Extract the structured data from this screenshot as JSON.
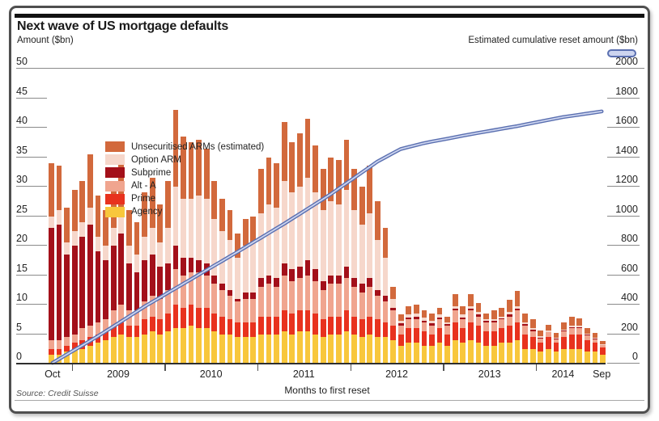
{
  "title": "Next wave of US mortgage defaults",
  "left_axis_title": "Amount ($bn)",
  "right_axis_title": "Estimated cumulative reset amount ($bn)",
  "x_axis_title": "Months to first reset",
  "source": "Source: Credit Suisse",
  "colors": {
    "agency": "#f8c73c",
    "prime": "#e8321e",
    "alt_a": "#f0a58f",
    "subprime": "#a3101a",
    "option_arm": "#f6d7cb",
    "unsec_arm": "#d2693c",
    "line_outer": "#5a6fb0",
    "line_inner": "#ccd4ef",
    "axis_text": "#222222"
  },
  "legend": [
    {
      "key": "unsec_arm",
      "label": "Unsecuritised ARMs (estimated)"
    },
    {
      "key": "option_arm",
      "label": "Option ARM"
    },
    {
      "key": "subprime",
      "label": "Subprime"
    },
    {
      "key": "alt_a",
      "label": "Alt - A"
    },
    {
      "key": "prime",
      "label": "Prime"
    },
    {
      "key": "agency",
      "label": "Agency"
    }
  ],
  "left_ticks": [
    50,
    45,
    40,
    35,
    30,
    25,
    20,
    15,
    10,
    5,
    0
  ],
  "right_ticks": [
    2000,
    1800,
    1600,
    1400,
    1200,
    1000,
    800,
    600,
    400,
    200,
    0
  ],
  "x_axis": {
    "labels": [
      {
        "text": "Oct",
        "pos": 0.5
      },
      {
        "text": "2009",
        "pos": 9
      },
      {
        "text": "2010",
        "pos": 21
      },
      {
        "text": "2011",
        "pos": 33
      },
      {
        "text": "2012",
        "pos": 45
      },
      {
        "text": "2013",
        "pos": 57
      },
      {
        "text": "2014",
        "pos": 66.5
      },
      {
        "text": "Sep",
        "pos": 71.5
      }
    ],
    "tick_positions": [
      3,
      15,
      27,
      39,
      51,
      63
    ]
  },
  "chart_data": [
    {
      "type": "bar",
      "stacked": true,
      "title": "Next wave of US mortgage defaults",
      "ylabel": "Amount ($bn)",
      "xlabel": "Months to first reset",
      "ylim": [
        0,
        50
      ],
      "grid": false,
      "x": [
        "Oct 2008",
        "Nov 2008",
        "Dec 2008",
        "Jan 2009",
        "Feb 2009",
        "Mar 2009",
        "Apr 2009",
        "May 2009",
        "Jun 2009",
        "Jul 2009",
        "Aug 2009",
        "Sep 2009",
        "Oct 2009",
        "Nov 2009",
        "Dec 2009",
        "Jan 2010",
        "Feb 2010",
        "Mar 2010",
        "Apr 2010",
        "May 2010",
        "Jun 2010",
        "Jul 2010",
        "Aug 2010",
        "Sep 2010",
        "Oct 2010",
        "Nov 2010",
        "Dec 2010",
        "Jan 2011",
        "Feb 2011",
        "Mar 2011",
        "Apr 2011",
        "May 2011",
        "Jun 2011",
        "Jul 2011",
        "Aug 2011",
        "Sep 2011",
        "Oct 2011",
        "Nov 2011",
        "Dec 2011",
        "Jan 2012",
        "Feb 2012",
        "Mar 2012",
        "Apr 2012",
        "May 2012",
        "Jun 2012",
        "Jul 2012",
        "Aug 2012",
        "Sep 2012",
        "Oct 2012",
        "Nov 2012",
        "Dec 2012",
        "Jan 2013",
        "Feb 2013",
        "Mar 2013",
        "Apr 2013",
        "May 2013",
        "Jun 2013",
        "Jul 2013",
        "Aug 2013",
        "Sep 2013",
        "Oct 2013",
        "Nov 2013",
        "Dec 2013",
        "Jan 2014",
        "Feb 2014",
        "Mar 2014",
        "Apr 2014",
        "May 2014",
        "Jun 2014",
        "Jul 2014",
        "Aug 2014",
        "Sep 2014"
      ],
      "series": [
        {
          "name": "Agency",
          "key": "agency",
          "values": [
            1.5,
            1.5,
            2,
            2.5,
            2.5,
            3,
            3.5,
            4,
            4.5,
            5,
            4.5,
            4.5,
            5,
            5.5,
            5,
            5.5,
            6,
            6,
            6.5,
            6,
            6,
            5.5,
            5,
            5,
            4.5,
            4.5,
            4.5,
            5,
            5,
            5,
            5.5,
            5,
            5.5,
            5.5,
            5,
            4.5,
            5,
            5,
            5.5,
            5,
            4.5,
            5,
            4.5,
            4.5,
            4,
            3,
            3.5,
            3.5,
            3,
            3,
            3.5,
            3,
            4,
            3.5,
            4,
            3.5,
            3,
            3,
            3.5,
            3.5,
            4,
            2.5,
            2.5,
            2,
            2.5,
            2,
            2.5,
            2.5,
            2.5,
            2,
            2,
            1.5
          ]
        },
        {
          "name": "Prime",
          "key": "prime",
          "values": [
            1,
            1,
            1,
            1,
            1.5,
            1.5,
            1.5,
            1.5,
            2,
            2,
            2,
            2,
            2.5,
            2.5,
            2.5,
            3,
            4,
            3.5,
            3.5,
            3.5,
            3.5,
            3,
            3,
            2.5,
            2.5,
            2.5,
            2.5,
            3,
            3,
            3,
            3.5,
            3.5,
            3.5,
            3.5,
            3.5,
            3,
            3,
            3,
            3.5,
            3,
            3,
            3,
            3,
            2.5,
            2.5,
            2,
            2.5,
            2.5,
            2.5,
            2,
            2.5,
            2,
            3,
            2.5,
            3,
            3,
            2.5,
            2.5,
            2.5,
            3,
            3,
            2.5,
            2,
            1.5,
            2,
            1.5,
            2,
            2.5,
            2.5,
            2,
            1.5,
            1.3
          ]
        },
        {
          "name": "Alt-A",
          "key": "alt_a",
          "values": [
            1.5,
            1.5,
            1.5,
            1.5,
            2,
            2,
            2,
            2,
            2.5,
            3,
            2.5,
            2.5,
            3,
            3.5,
            3.5,
            4,
            6,
            5.5,
            5.5,
            6,
            5.5,
            5,
            4.5,
            4,
            3.5,
            4,
            4,
            5,
            5.5,
            5,
            6,
            5.5,
            5.5,
            6,
            5.5,
            5,
            5.5,
            5.5,
            5.5,
            5,
            4.5,
            5,
            4,
            3.5,
            2.5,
            1.5,
            1.5,
            1.5,
            1.5,
            1.5,
            1.5,
            1.5,
            2,
            1.5,
            2,
            1.5,
            1.5,
            1.5,
            1.5,
            1.5,
            2,
            1.5,
            1,
            0.8,
            0.8,
            0.6,
            1,
            1,
            1,
            0.8,
            0.6,
            0.4
          ]
        },
        {
          "name": "Subprime",
          "key": "subprime",
          "values": [
            19,
            19.5,
            14,
            15,
            15.5,
            17,
            12,
            10,
            11,
            12,
            8,
            6.5,
            7,
            7,
            5.5,
            4.5,
            4,
            3,
            2.5,
            2,
            2,
            1.5,
            1,
            1,
            0.5,
            1,
            1,
            1.5,
            1.5,
            1.5,
            2,
            2,
            2,
            2.5,
            2,
            1.5,
            1.5,
            1.5,
            2,
            1.5,
            1.5,
            1.5,
            1,
            1,
            0.5,
            0.3,
            0.3,
            0.5,
            0.3,
            0.3,
            0.3,
            0.2,
            0.3,
            0.3,
            0.3,
            0.3,
            0.2,
            0.2,
            0.2,
            0.3,
            0.3,
            0.2,
            0.2,
            0.1,
            0.1,
            0.1,
            0.1,
            0.2,
            0.2,
            0.1,
            0.1,
            0
          ]
        },
        {
          "name": "Option ARM",
          "key": "option_arm",
          "values": [
            2,
            2.5,
            2,
            2.5,
            2.5,
            3,
            2.5,
            2.5,
            3,
            3.5,
            3,
            3,
            4,
            4.5,
            4,
            6,
            10,
            10,
            10,
            11,
            11,
            9.5,
            9,
            8.5,
            7,
            8,
            8.5,
            11,
            12,
            12,
            14,
            13,
            13.5,
            14,
            13,
            12,
            12.5,
            12,
            13,
            11.5,
            10,
            11,
            8.5,
            6.5,
            1.5,
            0.5,
            0.5,
            0.5,
            0.5,
            0.5,
            0.5,
            0.3,
            0.5,
            0.5,
            0.5,
            0.5,
            0.3,
            0.3,
            0.3,
            0.5,
            0.5,
            0.3,
            0.3,
            0.2,
            0.2,
            0.2,
            0.2,
            0.3,
            0.3,
            0.2,
            0.2,
            0.1
          ]
        },
        {
          "name": "Unsecuritised ARMs (estimated)",
          "key": "unsec_arm",
          "values": [
            9,
            7.5,
            6,
            7,
            7,
            9,
            7,
            6,
            8,
            9.5,
            6,
            5.5,
            7.5,
            8.5,
            6.5,
            8,
            13,
            10.5,
            9.5,
            9.5,
            8.5,
            6.5,
            5.5,
            5,
            4,
            4.5,
            4.5,
            7.5,
            8,
            7.5,
            10,
            8.5,
            9,
            10,
            8,
            7,
            7.5,
            7.5,
            8.5,
            7,
            6.5,
            8,
            6.5,
            5,
            2,
            1,
            1.5,
            1.5,
            1.2,
            1.2,
            1.2,
            1,
            2,
            1.5,
            2,
            1.5,
            1,
            1.5,
            1.5,
            2,
            2.5,
            1.5,
            1.5,
            1,
            1,
            0.8,
            1.2,
            1.5,
            1.2,
            1,
            0.8,
            0.5
          ]
        }
      ]
    },
    {
      "type": "line",
      "name": "Estimated cumulative reset amount ($bn)",
      "ylabel": "Estimated cumulative reset amount ($bn)",
      "ylim": [
        0,
        2000
      ],
      "anchor_points_month_value": [
        [
          0,
          5
        ],
        [
          6,
          190
        ],
        [
          12,
          390
        ],
        [
          18,
          575
        ],
        [
          24,
          760
        ],
        [
          30,
          950
        ],
        [
          36,
          1150
        ],
        [
          42,
          1370
        ],
        [
          45,
          1455
        ],
        [
          48,
          1495
        ],
        [
          54,
          1555
        ],
        [
          60,
          1610
        ],
        [
          66,
          1672
        ],
        [
          71,
          1710
        ]
      ]
    }
  ]
}
